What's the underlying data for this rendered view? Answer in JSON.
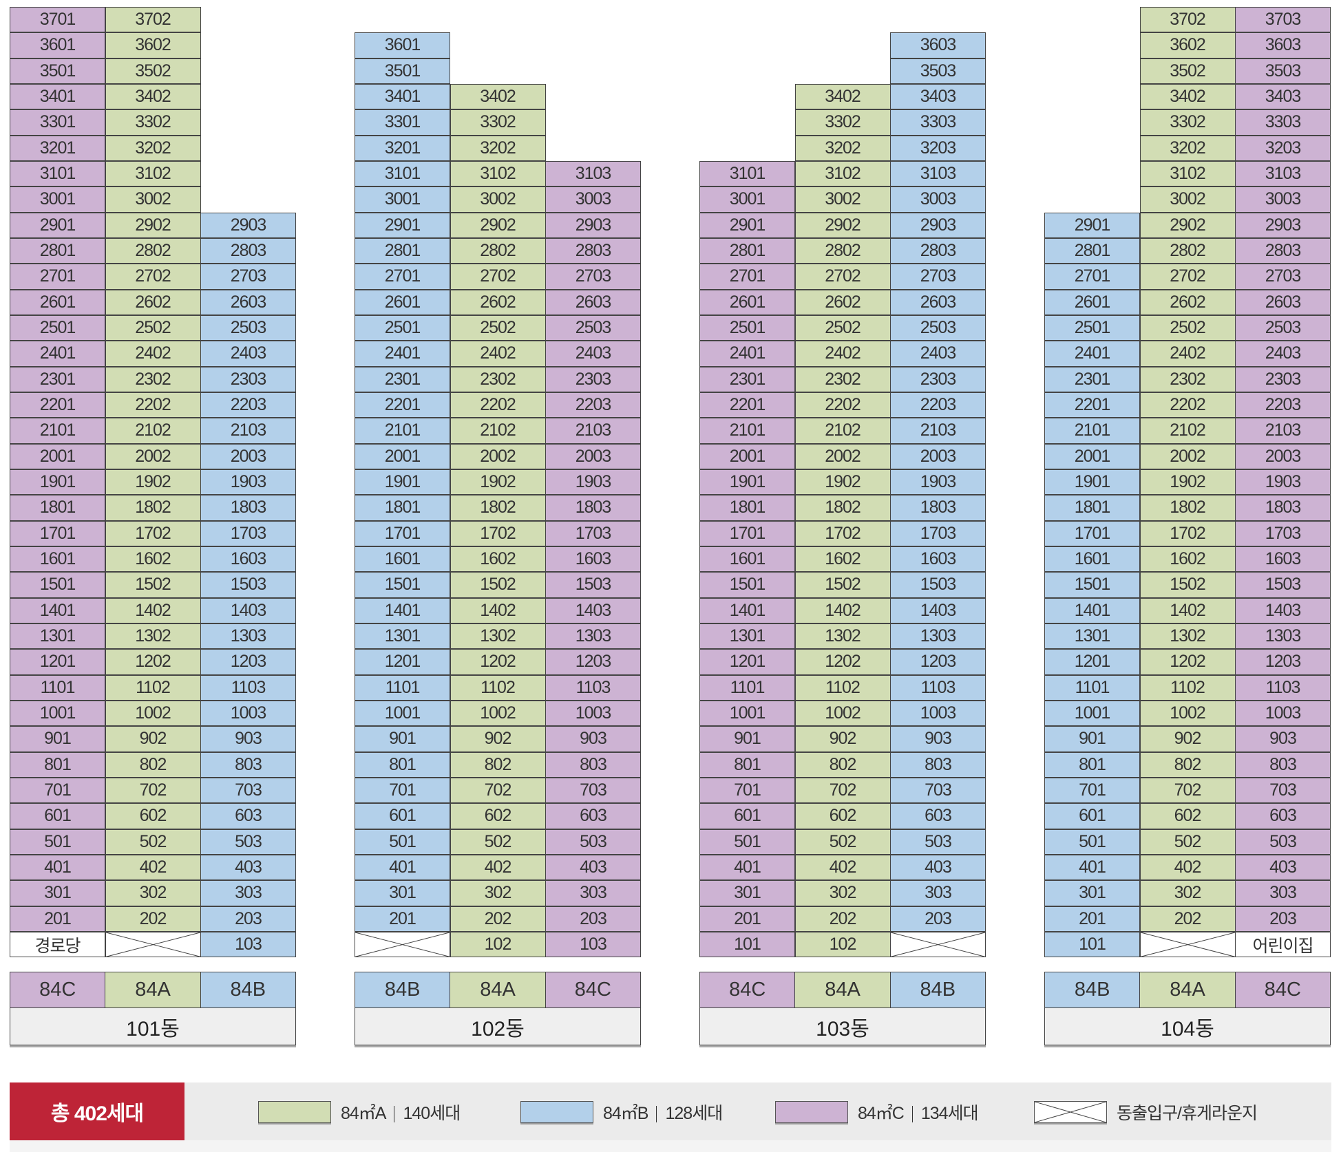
{
  "colors": {
    "84A": "#d2ddb4",
    "84B": "#b3d0ea",
    "84C": "#cdb3d3",
    "total_bg": "#be2437"
  },
  "buildings": [
    {
      "name": "101동",
      "types": [
        "84C",
        "84A",
        "84B"
      ],
      "columns": [
        {
          "type": "C",
          "line": "01",
          "top_floor": 37,
          "bottom_floor": 2,
          "ground": "경로당"
        },
        {
          "type": "A",
          "line": "02",
          "top_floor": 37,
          "bottom_floor": 2,
          "ground": "X"
        },
        {
          "type": "B",
          "line": "03",
          "top_floor": 29,
          "bottom_floor": 1,
          "ground": null
        }
      ]
    },
    {
      "name": "102동",
      "types": [
        "84B",
        "84A",
        "84C"
      ],
      "columns": [
        {
          "type": "B",
          "line": "01",
          "top_floor": 36,
          "bottom_floor": 2,
          "ground": "X"
        },
        {
          "type": "A",
          "line": "02",
          "top_floor": 34,
          "bottom_floor": 1,
          "ground": null
        },
        {
          "type": "C",
          "line": "03",
          "top_floor": 31,
          "bottom_floor": 1,
          "ground": null
        }
      ]
    },
    {
      "name": "103동",
      "types": [
        "84C",
        "84A",
        "84B"
      ],
      "columns": [
        {
          "type": "C",
          "line": "01",
          "top_floor": 31,
          "bottom_floor": 1,
          "ground": null
        },
        {
          "type": "A",
          "line": "02",
          "top_floor": 34,
          "bottom_floor": 1,
          "ground": null
        },
        {
          "type": "B",
          "line": "03",
          "top_floor": 36,
          "bottom_floor": 2,
          "ground": "X"
        }
      ]
    },
    {
      "name": "104동",
      "types": [
        "84B",
        "84A",
        "84C"
      ],
      "columns": [
        {
          "type": "B",
          "line": "01",
          "top_floor": 29,
          "bottom_floor": 1,
          "ground": null
        },
        {
          "type": "A",
          "line": "02",
          "top_floor": 37,
          "bottom_floor": 2,
          "ground": "X"
        },
        {
          "type": "C",
          "line": "03",
          "top_floor": 37,
          "bottom_floor": 2,
          "ground": "어린이집"
        }
      ]
    }
  ],
  "legend": {
    "total": "총 402세대",
    "items": [
      {
        "type": "A",
        "label": "84㎡A",
        "count": "140세대"
      },
      {
        "type": "B",
        "label": "84㎡B",
        "count": "128세대"
      },
      {
        "type": "C",
        "label": "84㎡C",
        "count": "134세대"
      },
      {
        "type": "X",
        "label": "동출입구/휴게라운지"
      }
    ]
  }
}
